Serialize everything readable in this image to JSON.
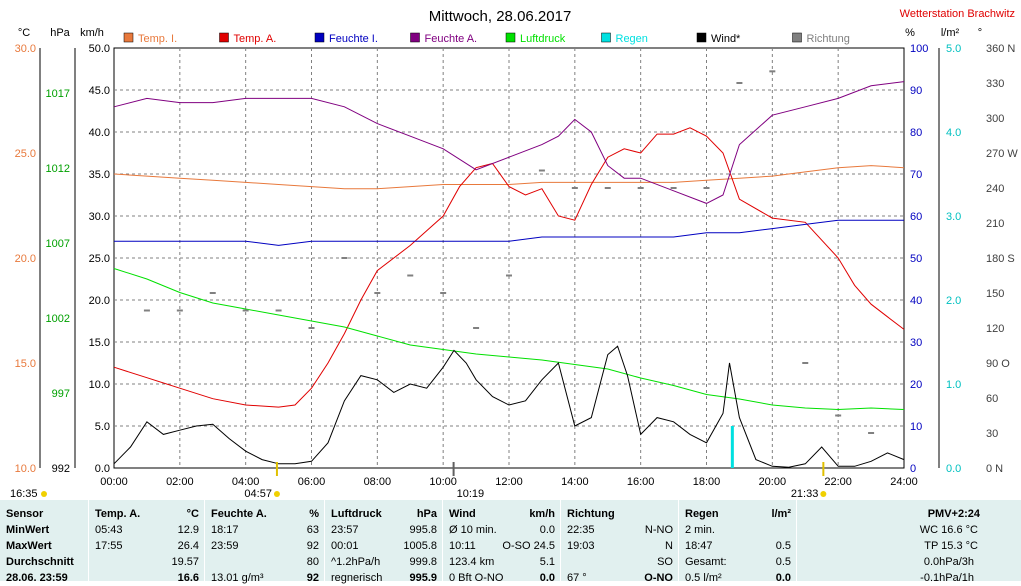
{
  "title": "Mittwoch, 28.06.2017",
  "station": "Wetterstation Brachwitz",
  "colors": {
    "temp_i": "#e8793c",
    "temp_a": "#e00000",
    "feuchte_i": "#0000c0",
    "feuchte_a": "#800080",
    "luftdruck": "#00e000",
    "regen": "#00e0e0",
    "wind": "#000000",
    "richtung": "#808080",
    "grid": "#808080",
    "luftdruck_axis": "#00a000",
    "regen_axis": "#00c0c0"
  },
  "legend": [
    {
      "label": "Temp. I.",
      "color": "#e8793c"
    },
    {
      "label": "Temp. A.",
      "color": "#e00000"
    },
    {
      "label": "Feuchte I.",
      "color": "#0000c0"
    },
    {
      "label": "Feuchte A.",
      "color": "#800080"
    },
    {
      "label": "Luftdruck",
      "color": "#00e000"
    },
    {
      "label": "Regen",
      "color": "#00e0e0"
    },
    {
      "label": "Wind*",
      "color": "#000000"
    },
    {
      "label": "Richtung",
      "color": "#808080"
    }
  ],
  "units": {
    "temp": "°C",
    "press": "hPa",
    "wind": "km/h",
    "hum": "%",
    "rain": "l/m²",
    "dir": "°"
  },
  "axes": {
    "temp_ticks": [
      "30.0",
      "25.0",
      "20.0",
      "15.0",
      "10.0"
    ],
    "press_ticks": [
      "1017",
      "1012",
      "1007",
      "1002",
      "997",
      "992"
    ],
    "wind_ticks": [
      "50.0",
      "45.0",
      "40.0",
      "35.0",
      "30.0",
      "25.0",
      "20.0",
      "15.0",
      "10.0",
      "5.0",
      "0.0"
    ],
    "hum_ticks": [
      "100",
      "90",
      "80",
      "70",
      "60",
      "50",
      "40",
      "30",
      "20",
      "10",
      "0"
    ],
    "rain_ticks": [
      "5.0",
      "4.0",
      "3.0",
      "2.0",
      "1.0",
      "0.0"
    ],
    "dir_ticks": [
      "360 N",
      "330",
      "300",
      "270 W",
      "240",
      "210",
      "180 S",
      "150",
      "120",
      "90 O",
      "60",
      "30",
      "0 N"
    ],
    "x_ticks": [
      "00:00",
      "02:00",
      "04:00",
      "06:00",
      "08:00",
      "10:00",
      "12:00",
      "14:00",
      "16:00",
      "18:00",
      "20:00",
      "22:00",
      "24:00"
    ]
  },
  "markers": {
    "sunrise_day": "16:35",
    "sunrise": "04:57",
    "max_wind": "10:19",
    "sunset": "21:33"
  },
  "chart_data": {
    "type": "line",
    "title": "Mittwoch, 28.06.2017",
    "x_unit": "hour",
    "xlim": [
      0,
      24
    ],
    "grid": true,
    "series": [
      {
        "name": "Temp. I.",
        "axis": "temp",
        "ylim": [
          10,
          30
        ],
        "points": [
          [
            0,
            24.0
          ],
          [
            1,
            23.9
          ],
          [
            2,
            23.8
          ],
          [
            3,
            23.7
          ],
          [
            4,
            23.6
          ],
          [
            5,
            23.5
          ],
          [
            6,
            23.4
          ],
          [
            7,
            23.3
          ],
          [
            8,
            23.3
          ],
          [
            9,
            23.4
          ],
          [
            10,
            23.5
          ],
          [
            11,
            23.5
          ],
          [
            12,
            23.5
          ],
          [
            13,
            23.6
          ],
          [
            14,
            23.6
          ],
          [
            15,
            23.6
          ],
          [
            16,
            23.6
          ],
          [
            17,
            23.6
          ],
          [
            18,
            23.7
          ],
          [
            19,
            23.8
          ],
          [
            20,
            23.9
          ],
          [
            21,
            24.1
          ],
          [
            22,
            24.3
          ],
          [
            23,
            24.4
          ],
          [
            24,
            24.3
          ]
        ]
      },
      {
        "name": "Temp. A.",
        "axis": "temp",
        "ylim": [
          10,
          30
        ],
        "points": [
          [
            0,
            14.8
          ],
          [
            1,
            14.3
          ],
          [
            2,
            13.8
          ],
          [
            3,
            13.3
          ],
          [
            4,
            13.0
          ],
          [
            5,
            12.9
          ],
          [
            5.5,
            13.0
          ],
          [
            6,
            13.8
          ],
          [
            6.5,
            15.0
          ],
          [
            7,
            16.4
          ],
          [
            7.5,
            18.0
          ],
          [
            8,
            19.4
          ],
          [
            9,
            20.6
          ],
          [
            9.5,
            21.3
          ],
          [
            10,
            22.0
          ],
          [
            10.5,
            23.4
          ],
          [
            11,
            24.3
          ],
          [
            11.5,
            24.5
          ],
          [
            12,
            23.4
          ],
          [
            12.5,
            23.0
          ],
          [
            13,
            23.3
          ],
          [
            13.5,
            22.0
          ],
          [
            14,
            21.8
          ],
          [
            14.5,
            23.5
          ],
          [
            15,
            24.8
          ],
          [
            15.5,
            25.2
          ],
          [
            16,
            25.0
          ],
          [
            16.5,
            25.9
          ],
          [
            17,
            25.9
          ],
          [
            17.5,
            26.2
          ],
          [
            18,
            25.8
          ],
          [
            18.5,
            25.0
          ],
          [
            19,
            22.8
          ],
          [
            20,
            21.9
          ],
          [
            21,
            21.7
          ],
          [
            22,
            20.0
          ],
          [
            22.5,
            18.7
          ],
          [
            23,
            17.8
          ],
          [
            23.5,
            17.2
          ],
          [
            24,
            16.6
          ]
        ]
      },
      {
        "name": "Feuchte I.",
        "axis": "hum",
        "ylim": [
          0,
          100
        ],
        "points": [
          [
            0,
            54
          ],
          [
            2,
            54
          ],
          [
            3,
            54
          ],
          [
            4,
            54
          ],
          [
            5,
            53
          ],
          [
            6,
            54
          ],
          [
            7,
            54
          ],
          [
            8,
            54
          ],
          [
            9,
            54
          ],
          [
            10,
            54
          ],
          [
            11,
            54
          ],
          [
            12,
            54
          ],
          [
            13,
            55
          ],
          [
            14,
            55
          ],
          [
            15,
            55
          ],
          [
            16,
            55
          ],
          [
            17,
            55
          ],
          [
            18,
            56
          ],
          [
            19,
            56
          ],
          [
            20,
            57
          ],
          [
            21,
            58
          ],
          [
            22,
            59
          ],
          [
            23,
            59
          ],
          [
            24,
            59
          ]
        ]
      },
      {
        "name": "Feuchte A.",
        "axis": "hum",
        "ylim": [
          0,
          100
        ],
        "points": [
          [
            0,
            86
          ],
          [
            1,
            88
          ],
          [
            2,
            87
          ],
          [
            3,
            87
          ],
          [
            4,
            88
          ],
          [
            5,
            88
          ],
          [
            6,
            88
          ],
          [
            7,
            86
          ],
          [
            8,
            82
          ],
          [
            9,
            79
          ],
          [
            10,
            76
          ],
          [
            11,
            71
          ],
          [
            12,
            74
          ],
          [
            13,
            77
          ],
          [
            13.5,
            79
          ],
          [
            14,
            83
          ],
          [
            14.5,
            80
          ],
          [
            15,
            72
          ],
          [
            15.5,
            69
          ],
          [
            16,
            69
          ],
          [
            17,
            66
          ],
          [
            18,
            63
          ],
          [
            18.5,
            65
          ],
          [
            19,
            77
          ],
          [
            20,
            84
          ],
          [
            21,
            86
          ],
          [
            22,
            88
          ],
          [
            23,
            91
          ],
          [
            24,
            92
          ]
        ]
      },
      {
        "name": "Luftdruck",
        "axis": "press",
        "ylim": [
          992,
          1020
        ],
        "points": [
          [
            0,
            1005.3
          ],
          [
            1,
            1004.6
          ],
          [
            2,
            1003.7
          ],
          [
            3,
            1003.0
          ],
          [
            4,
            1002.6
          ],
          [
            5,
            1002.2
          ],
          [
            6,
            1001.8
          ],
          [
            7,
            1001.4
          ],
          [
            8,
            1000.8
          ],
          [
            9,
            1000.2
          ],
          [
            10,
            999.9
          ],
          [
            11,
            999.6
          ],
          [
            12,
            999.4
          ],
          [
            13,
            999.2
          ],
          [
            14,
            998.9
          ],
          [
            15,
            998.6
          ],
          [
            16,
            998.0
          ],
          [
            17,
            997.5
          ],
          [
            18,
            996.9
          ],
          [
            19,
            996.6
          ],
          [
            20,
            996.2
          ],
          [
            21,
            996.0
          ],
          [
            22,
            995.9
          ],
          [
            23,
            996.0
          ],
          [
            24,
            995.9
          ]
        ]
      },
      {
        "name": "Wind*",
        "axis": "wind",
        "ylim": [
          0,
          50
        ],
        "points": [
          [
            0,
            0.5
          ],
          [
            0.5,
            2.5
          ],
          [
            1,
            5.5
          ],
          [
            1.5,
            4.0
          ],
          [
            2,
            4.5
          ],
          [
            2.5,
            5.0
          ],
          [
            3,
            5.2
          ],
          [
            3.5,
            3.5
          ],
          [
            4,
            2.0
          ],
          [
            4.5,
            1.0
          ],
          [
            5,
            0.5
          ],
          [
            5.5,
            0.5
          ],
          [
            6,
            0.8
          ],
          [
            6.5,
            3.0
          ],
          [
            7,
            8.0
          ],
          [
            7.5,
            11.0
          ],
          [
            8,
            10.5
          ],
          [
            8.5,
            9.0
          ],
          [
            9,
            10.0
          ],
          [
            9.5,
            9.5
          ],
          [
            10,
            12.0
          ],
          [
            10.33,
            14.0
          ],
          [
            10.7,
            12.5
          ],
          [
            11,
            10.5
          ],
          [
            11.5,
            8.5
          ],
          [
            12,
            7.5
          ],
          [
            12.5,
            8.0
          ],
          [
            13,
            10.5
          ],
          [
            13.5,
            12.5
          ],
          [
            14,
            5.0
          ],
          [
            14.5,
            6.0
          ],
          [
            15,
            13.5
          ],
          [
            15.3,
            14.5
          ],
          [
            15.6,
            11.0
          ],
          [
            16,
            4.0
          ],
          [
            16.5,
            6.0
          ],
          [
            17,
            5.5
          ],
          [
            17.5,
            4.0
          ],
          [
            18,
            3.0
          ],
          [
            18.5,
            6.5
          ],
          [
            18.7,
            12.5
          ],
          [
            19,
            6.0
          ],
          [
            19.5,
            1.0
          ],
          [
            20,
            0.2
          ],
          [
            20.5,
            0.1
          ],
          [
            21,
            0.5
          ],
          [
            21.5,
            2.5
          ],
          [
            22,
            0.2
          ],
          [
            22.5,
            0.2
          ],
          [
            23,
            0.8
          ],
          [
            23.5,
            1.8
          ],
          [
            24,
            1.0
          ]
        ]
      },
      {
        "name": "Regen",
        "axis": "rain",
        "ylim": [
          0,
          5
        ],
        "points": [
          [
            18.77,
            0.5
          ]
        ]
      },
      {
        "name": "Richtung",
        "axis": "dir",
        "ylim": [
          0,
          360
        ],
        "points": [
          [
            1,
            135
          ],
          [
            2,
            135
          ],
          [
            3,
            150
          ],
          [
            4,
            135
          ],
          [
            5,
            135
          ],
          [
            6,
            120
          ],
          [
            7,
            180
          ],
          [
            8,
            150
          ],
          [
            9,
            165
          ],
          [
            10,
            150
          ],
          [
            11,
            120
          ],
          [
            12,
            165
          ],
          [
            13,
            255
          ],
          [
            14,
            240
          ],
          [
            15,
            240
          ],
          [
            16,
            240
          ],
          [
            17,
            240
          ],
          [
            18,
            240
          ],
          [
            19,
            330
          ],
          [
            20,
            340
          ],
          [
            21,
            90
          ],
          [
            22,
            45
          ],
          [
            23,
            30
          ]
        ]
      }
    ]
  },
  "table": {
    "sensor": {
      "header": "Sensor",
      "rows": [
        "MinWert",
        "MaxWert",
        "Durchschnitt",
        "28.06. 23:59"
      ]
    },
    "temp_a": {
      "header": "Temp. A.",
      "unit": "°C",
      "rows": [
        [
          "05:43",
          "12.9"
        ],
        [
          "17:55",
          "26.4"
        ],
        [
          "",
          "19.57"
        ],
        [
          "",
          "16.6"
        ]
      ]
    },
    "feuchte_a": {
      "header": "Feuchte A.",
      "unit": "%",
      "rows": [
        [
          "18:17",
          "63"
        ],
        [
          "23:59",
          "92"
        ],
        [
          "",
          "80"
        ],
        [
          "13.01 g/m³",
          "92"
        ]
      ]
    },
    "luftdruck": {
      "header": "Luftdruck",
      "unit": "hPa",
      "rows": [
        [
          "23:57",
          "995.8"
        ],
        [
          "00:01",
          "1005.8"
        ],
        [
          "^1.2hPa/h",
          "999.8"
        ],
        [
          "regnerisch",
          "995.9"
        ]
      ]
    },
    "wind": {
      "header": "Wind",
      "unit": "km/h",
      "rows": [
        [
          "Ø 10 min.",
          "0.0"
        ],
        [
          "10:11",
          "O-SO 24.5"
        ],
        [
          "123.4 km",
          "5.1"
        ],
        [
          "0 Bft O-NO",
          "0.0"
        ]
      ]
    },
    "richtung": {
      "header": "Richtung",
      "unit": "",
      "rows": [
        [
          "22:35",
          "N-NO"
        ],
        [
          "19:03",
          "N"
        ],
        [
          "",
          "SO"
        ],
        [
          "67 °",
          "O-NO"
        ]
      ]
    },
    "regen": {
      "header": "Regen",
      "unit": "l/m²",
      "rows": [
        [
          "2 min.",
          ""
        ],
        [
          "18:47",
          "0.5"
        ],
        [
          "Gesamt:",
          "0.5"
        ],
        [
          "0.5 l/m²",
          "0.0"
        ]
      ]
    },
    "pmv": {
      "header": "PMV+2:24",
      "rows": [
        "WC 16.6 °C",
        "TP 15.3 °C",
        "0.0hPa/3h",
        "-0.1hPa/1h"
      ]
    }
  }
}
